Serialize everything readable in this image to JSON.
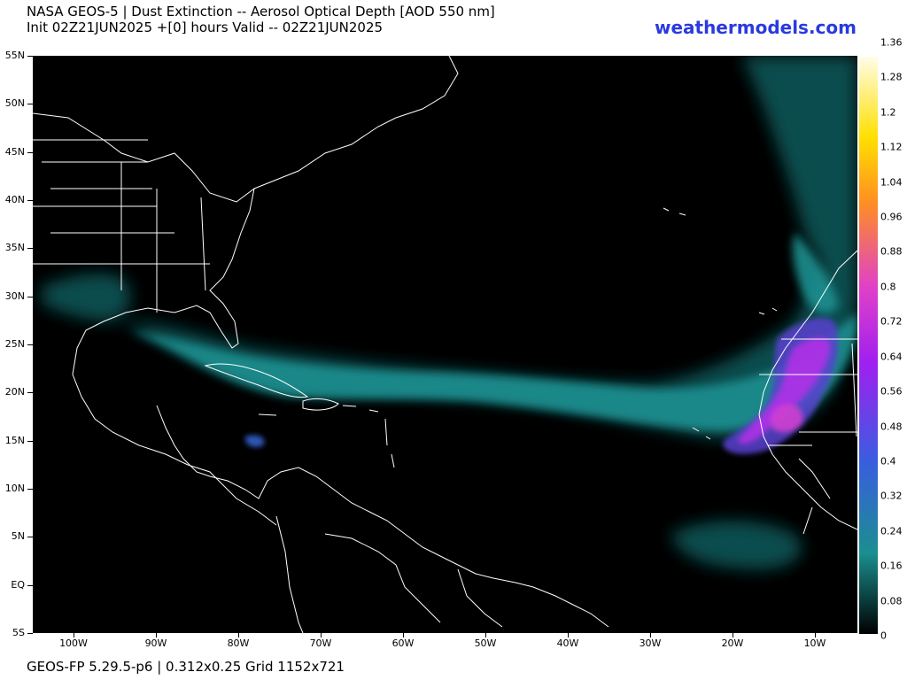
{
  "header": {
    "title_line1": "NASA GEOS-5 | Dust Extinction -- Aerosol Optical Depth [AOD 550 nm]",
    "title_line2": "Init 02Z21JUN2025 +[0] hours Valid -- 02Z21JUN2025",
    "brand": "weathermodels.com"
  },
  "footer": {
    "text": "GEOS-FP 5.29.5-p6 | 0.312x0.25 Grid 1152x721"
  },
  "map": {
    "lat_labels": [
      "55N",
      "50N",
      "45N",
      "40N",
      "35N",
      "30N",
      "25N",
      "20N",
      "15N",
      "10N",
      "5N",
      "EQ",
      "5S"
    ],
    "lon_labels": [
      "100W",
      "90W",
      "80W",
      "70W",
      "60W",
      "50W",
      "40W",
      "30W",
      "20W",
      "10W"
    ],
    "background_color": "#000000",
    "coastline_color": "#ffffff"
  },
  "colorbar": {
    "labels": [
      "1.36",
      "1.28",
      "1.2",
      "1.12",
      "1.04",
      "0.96",
      "0.88",
      "0.8",
      "0.72",
      "0.64",
      "0.56",
      "0.48",
      "0.4",
      "0.32",
      "0.24",
      "0.16",
      "0.08",
      "0"
    ],
    "colors": {
      "low": "#000000",
      "teal": "#1a8f8f",
      "blue": "#3a5de0",
      "purple": "#a020f0",
      "magenta": "#e040c8",
      "orange": "#ff9020",
      "yellow": "#ffe000",
      "pale": "#fffde8"
    }
  }
}
